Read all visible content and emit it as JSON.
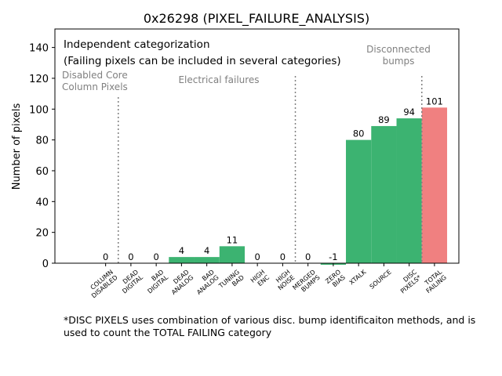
{
  "chart_data": {
    "type": "bar",
    "title": "0x26298 (PIXEL_FAILURE_ANALYSIS)",
    "xlabel": "",
    "ylabel": "Number of pixels",
    "ylim": [
      0,
      152
    ],
    "yticks": [
      0,
      20,
      40,
      60,
      80,
      100,
      120,
      140
    ],
    "grid": false,
    "categories": [
      [
        "COLUMN",
        "DISABLED"
      ],
      [
        "DEAD",
        "DIGITAL"
      ],
      [
        "BAD",
        "DIGITAL"
      ],
      [
        "DEAD",
        "ANALOG"
      ],
      [
        "BAD",
        "ANALOG"
      ],
      [
        "TUNING",
        "BAD"
      ],
      [
        "HIGH",
        "ENC"
      ],
      [
        "HIGH",
        "NOISE"
      ],
      [
        "MERGED",
        "BUMPS"
      ],
      [
        "ZERO",
        "BIAS"
      ],
      [
        "XTALK"
      ],
      [
        "SOURCE"
      ],
      [
        "DISC",
        "PIXELS*"
      ],
      [
        "TOTAL",
        "FAILING"
      ]
    ],
    "values": [
      0,
      0,
      0,
      4,
      4,
      11,
      0,
      0,
      0,
      -1,
      80,
      89,
      94,
      101
    ],
    "value_labels": [
      "0",
      "0",
      "0",
      "4",
      "4",
      "11",
      "0",
      "0",
      "0",
      "-1",
      "80",
      "89",
      "94",
      "101"
    ],
    "bar_colors": [
      "#3cb371",
      "#3cb371",
      "#3cb371",
      "#3cb371",
      "#3cb371",
      "#3cb371",
      "#3cb371",
      "#3cb371",
      "#3cb371",
      "#3cb371",
      "#3cb371",
      "#3cb371",
      "#3cb371",
      "#f08080"
    ],
    "dividers_after_category": [
      0,
      7,
      12
    ],
    "section_labels": [
      {
        "lines": [
          "Disabled Core",
          "Column Pixels"
        ],
        "color": "#808080"
      },
      {
        "lines": [
          "Electrical failures"
        ],
        "color": "#808080"
      },
      {
        "lines": [
          "Disconnected",
          "bumps"
        ],
        "color": "#808080"
      }
    ],
    "annotations": [
      "Independent categorization",
      "(Failing pixels can be included in several categories)"
    ]
  },
  "footnote": "*DISC PIXELS uses combination of various disc. bump identificaiton methods, and is used to count the TOTAL FAILING category"
}
